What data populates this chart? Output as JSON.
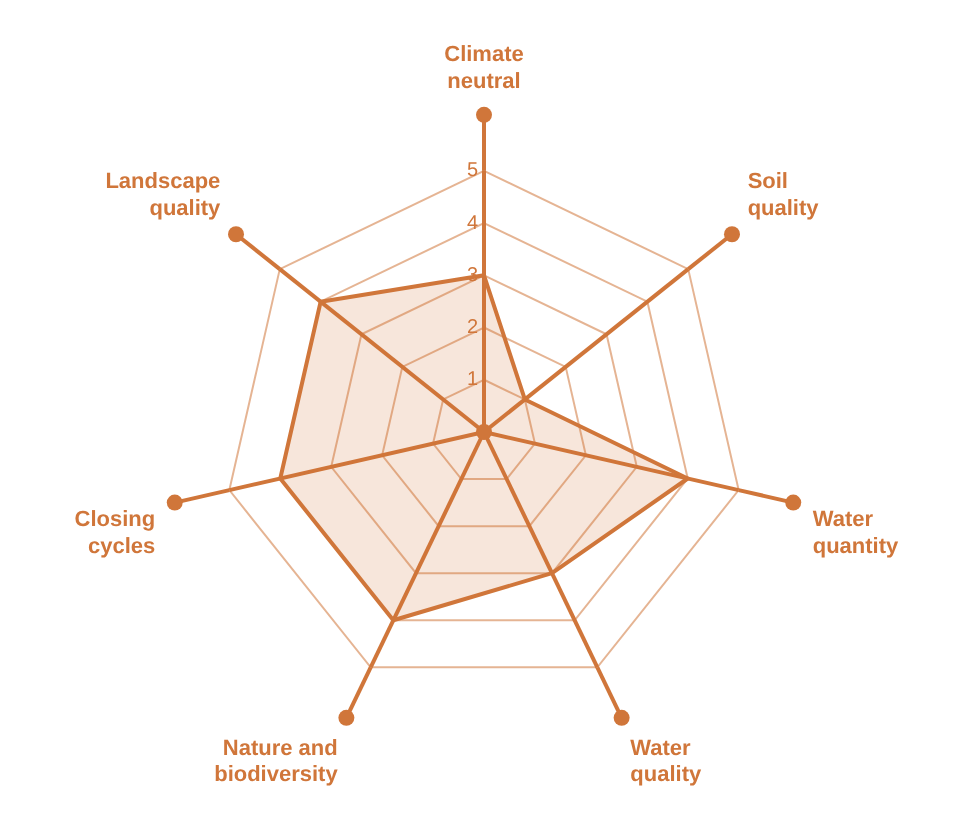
{
  "chart_data": {
    "type": "radar",
    "categories": [
      "Climate neutral",
      "Soil quality",
      "Water quantity",
      "Water quality",
      "Nature and biodiversity",
      "Closing cycles",
      "Landscape quality"
    ],
    "series": [
      {
        "color": "#d0763a",
        "values": [
          3,
          1,
          4,
          3,
          4,
          4,
          4
        ]
      }
    ],
    "ylim": [
      0,
      5
    ],
    "yticks": [
      1,
      2,
      3,
      4,
      5
    ],
    "grid": true,
    "marker": "none"
  }
}
